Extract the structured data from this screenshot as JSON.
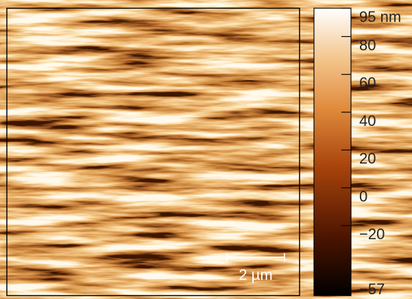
{
  "colorbar": {
    "ticks": [
      {
        "value": 95,
        "label": "95 nm"
      },
      80,
      60,
      40,
      20,
      0,
      {
        "value": -20,
        "label": "−20"
      },
      {
        "value": -57,
        "label": "−57"
      }
    ]
  },
  "scale_bar": {
    "label": "2 µm"
  }
}
